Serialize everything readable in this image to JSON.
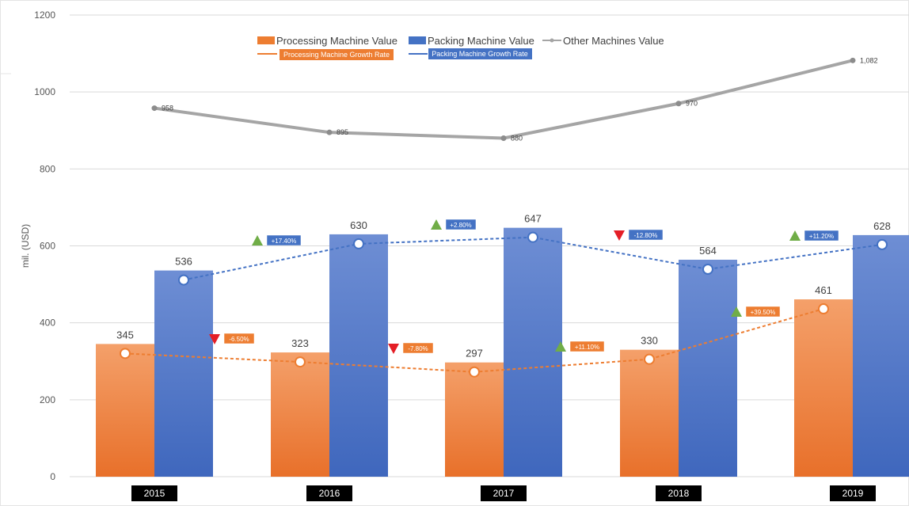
{
  "chart_data": {
    "type": "bar",
    "ylabel": "mil. (USD)",
    "ylim": [
      0,
      1200
    ],
    "yticks": [
      "0",
      "200",
      "400",
      "600",
      "800",
      "1000",
      "1200"
    ],
    "grid": true,
    "legend_position": "top-center",
    "categories": [
      "2015",
      "2016",
      "2017",
      "2018",
      "2019"
    ],
    "series": [
      {
        "name": "Processing Machine Value",
        "kind": "bar",
        "color": "#ED7D31",
        "values": [
          345,
          323,
          297,
          330,
          461
        ],
        "labels": [
          "345",
          "323",
          "297",
          "330",
          "461"
        ]
      },
      {
        "name": "Packing Machine Value",
        "kind": "bar",
        "color": "#4472C4",
        "values": [
          536,
          630,
          647,
          564,
          628
        ],
        "labels": [
          "536",
          "630",
          "647",
          "564",
          "628"
        ]
      },
      {
        "name": "Other Machines Value",
        "kind": "line",
        "color": "#A5A5A5",
        "values": [
          958,
          895,
          880,
          970,
          1082
        ],
        "labels": [
          "958",
          "895",
          "880",
          "970",
          "1,082"
        ]
      },
      {
        "name": "Processing Machine Growth Rate",
        "kind": "dashed-line",
        "color": "#ED7D31",
        "rates": [
          {
            "between": [
              "2015",
              "2016"
            ],
            "label": "-6.50%",
            "direction": "down"
          },
          {
            "between": [
              "2016",
              "2017"
            ],
            "label": "-7.80%",
            "direction": "down"
          },
          {
            "between": [
              "2017",
              "2018"
            ],
            "label": "+11.10%",
            "direction": "up"
          },
          {
            "between": [
              "2018",
              "2019"
            ],
            "label": "+39.50%",
            "direction": "up"
          }
        ]
      },
      {
        "name": "Packing Machine Growth Rate",
        "kind": "dashed-line",
        "color": "#4472C4",
        "rates": [
          {
            "between": [
              "2015",
              "2016"
            ],
            "label": "+17.40%",
            "direction": "up"
          },
          {
            "between": [
              "2016",
              "2017"
            ],
            "label": "+2.80%",
            "direction": "up"
          },
          {
            "between": [
              "2017",
              "2018"
            ],
            "label": "-12.80%",
            "direction": "down"
          },
          {
            "between": [
              "2018",
              "2019"
            ],
            "label": "+11.20%",
            "direction": "up"
          }
        ]
      }
    ],
    "colors": {
      "up_arrow": "#70AD47",
      "down_arrow": "#E41E26",
      "year_box": "#000000",
      "grid": "#D9D9D9"
    }
  }
}
